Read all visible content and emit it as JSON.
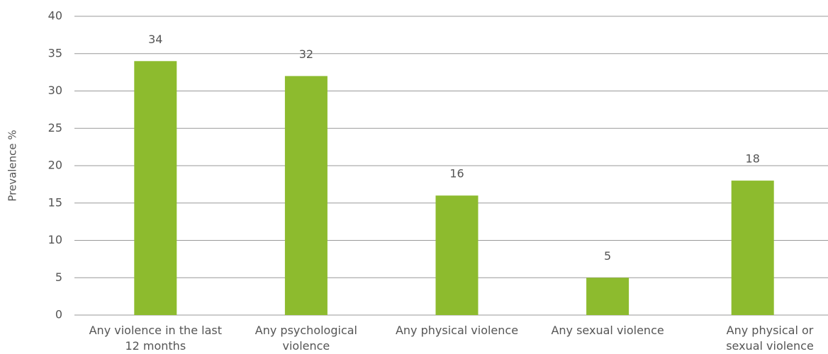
{
  "chart_data": {
    "type": "bar",
    "y_label": "Prevalence %",
    "categories": [
      "Any violence in the last 12 months",
      "Any psychological violence",
      "Any physical violence",
      "Any sexual violence",
      "Any physical or sexual violence"
    ],
    "values": [
      34,
      32,
      16,
      5,
      18
    ],
    "color": "#8dbb2e",
    "ylim": [
      0,
      40
    ],
    "yticks": [
      0,
      5,
      10,
      15,
      20,
      25,
      30,
      35,
      40
    ],
    "grid": true
  }
}
